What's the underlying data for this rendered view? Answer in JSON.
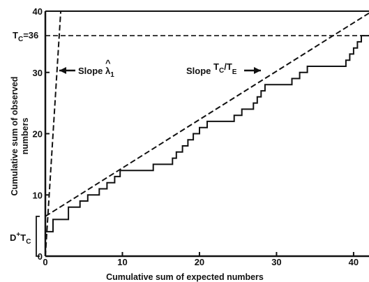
{
  "chart_data": {
    "type": "line",
    "xlabel": "Cumulative sum of expected numbers",
    "ylabel_line1": "Cumulative sum of observed",
    "ylabel_line2": "numbers",
    "xlim": [
      0,
      42
    ],
    "ylim": [
      0,
      40
    ],
    "x_ticks": [
      0,
      10,
      20,
      30,
      40
    ],
    "y_ticks": [
      0,
      10,
      20,
      30,
      40
    ],
    "grid": false,
    "tc_label_main": "T",
    "tc_label_sub": "C",
    "tc_label_rest": "=36",
    "tc_value": 36,
    "d_label_main": "D",
    "d_label_sup": "+",
    "d_label_rest": "T",
    "d_label_sub": "C",
    "d_range": [
      0,
      6.5
    ],
    "slope1_label": "Slope λ",
    "slope1_hat": "^",
    "slope1_sub": "1",
    "slope1_value": 20,
    "slope2_label_main": "Slope ",
    "slope2_label_T1": "T",
    "slope2_label_sub1": "C",
    "slope2_label_slash": "/T",
    "slope2_label_sub2": "E",
    "slope2_line": {
      "intercept": 6.5,
      "slope": 0.79
    },
    "series": [
      {
        "values": [
          [
            0,
            4
          ],
          [
            1,
            4
          ],
          [
            1,
            6
          ],
          [
            3,
            6
          ],
          [
            3,
            8
          ],
          [
            4.5,
            8
          ],
          [
            4.5,
            9
          ],
          [
            5.5,
            9
          ],
          [
            5.5,
            10
          ],
          [
            7,
            10
          ],
          [
            7,
            11
          ],
          [
            8,
            11
          ],
          [
            8,
            12
          ],
          [
            9,
            12
          ],
          [
            9,
            13
          ],
          [
            9.7,
            13
          ],
          [
            9.7,
            14
          ],
          [
            14,
            14
          ],
          [
            14,
            15
          ],
          [
            16.5,
            15
          ],
          [
            16.5,
            16
          ],
          [
            17,
            16
          ],
          [
            17,
            17
          ],
          [
            17.8,
            17
          ],
          [
            17.8,
            18
          ],
          [
            18.5,
            18
          ],
          [
            18.5,
            19
          ],
          [
            19.2,
            19
          ],
          [
            19.2,
            20
          ],
          [
            20,
            20
          ],
          [
            20,
            21
          ],
          [
            21,
            21
          ],
          [
            21,
            22
          ],
          [
            24.5,
            22
          ],
          [
            24.5,
            23
          ],
          [
            25.5,
            23
          ],
          [
            25.5,
            24
          ],
          [
            27,
            24
          ],
          [
            27,
            25
          ],
          [
            27.5,
            25
          ],
          [
            27.5,
            26
          ],
          [
            28,
            26
          ],
          [
            28,
            27
          ],
          [
            28.5,
            27
          ],
          [
            28.5,
            28
          ],
          [
            32,
            28
          ],
          [
            32,
            29
          ],
          [
            33,
            29
          ],
          [
            33,
            30
          ],
          [
            34,
            30
          ],
          [
            34,
            31
          ],
          [
            39,
            31
          ],
          [
            39,
            32
          ],
          [
            39.5,
            32
          ],
          [
            39.5,
            33
          ],
          [
            40,
            33
          ],
          [
            40,
            34
          ],
          [
            40.5,
            34
          ],
          [
            40.5,
            35
          ],
          [
            41,
            35
          ],
          [
            41,
            36
          ],
          [
            42,
            36
          ]
        ]
      }
    ]
  }
}
